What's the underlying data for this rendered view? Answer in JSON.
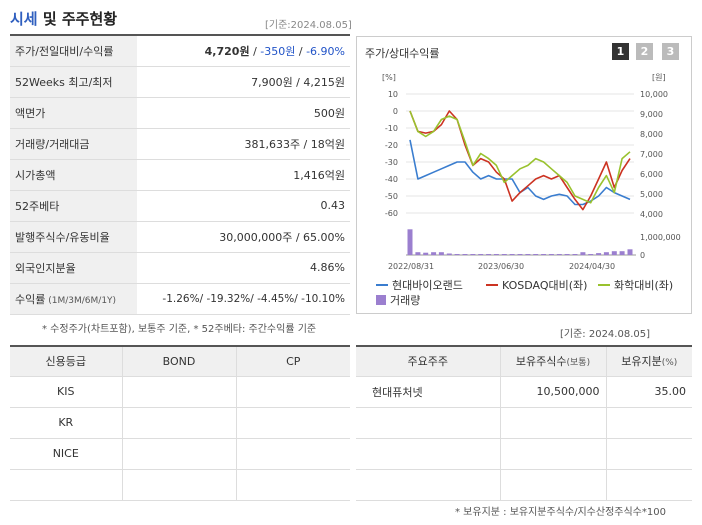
{
  "header": {
    "title_accent": "시세",
    "title_rest": " 및 주주현황",
    "asof": "[기준:2024.08.05]"
  },
  "stats": [
    {
      "label": "주가/전일대비/수익률",
      "v1": "4,720원",
      "sep1": " / ",
      "v2": "-350원",
      "sep2": " / ",
      "v3": "-6.90%"
    },
    {
      "label": "52Weeks 최고/최저",
      "value": "7,900원 / 4,215원"
    },
    {
      "label": "액면가",
      "value": "500원"
    },
    {
      "label": "거래량/거래대금",
      "value": "381,633주 / 18억원"
    },
    {
      "label": "시가총액",
      "value": "1,416억원"
    },
    {
      "label": "52주베타",
      "value": "0.43"
    },
    {
      "label": "발행주식수/유동비율",
      "value": "30,000,000주 / 65.00%"
    },
    {
      "label": "외국인지분율",
      "value": "4.86%"
    },
    {
      "label_main": "수익률",
      "label_sub": " (1M/3M/6M/1Y)",
      "value": "-1.26%/ -19.32%/ -4.45%/ -10.10%"
    }
  ],
  "note_stats": "* 수정주가(차트포함), 보통주 기준, * 52주베타: 주간수익률 기준",
  "chart": {
    "title": "주가/상대수익률",
    "pages": [
      "1",
      "2",
      "3"
    ],
    "left_unit": "[%]",
    "right_unit": "[원]",
    "left_ticks": [
      "10",
      "0",
      "-10",
      "-20",
      "-30",
      "-40",
      "-50",
      "-60"
    ],
    "right_ticks": [
      "10,000",
      "9,000",
      "8,000",
      "7,000",
      "6,000",
      "5,000",
      "4,000"
    ],
    "vol_tick": "1,000,000",
    "vol_zero": "0",
    "x_labels": [
      "2022/08/31",
      "2023/06/30",
      "2024/04/30"
    ],
    "legend": [
      "현대바이오랜드",
      "KOSDAQ대비(좌)",
      "화학대비(좌)",
      "거래량"
    ]
  },
  "chart_data": {
    "type": "line",
    "x_labels": [
      "2022/08/31",
      "2023/06/30",
      "2024/04/30"
    ],
    "left_axis": {
      "label": "[%]",
      "range": [
        -60,
        10
      ]
    },
    "right_axis": {
      "label": "[원]",
      "range": [
        4000,
        10000
      ]
    },
    "series": [
      {
        "name": "현대바이오랜드",
        "color": "#3a7dcf",
        "axis": "left",
        "values": [
          -17,
          -40,
          -38,
          -36,
          -34,
          -32,
          -30,
          -30,
          -36,
          -40,
          -38,
          -40,
          -40,
          -40,
          -48,
          -45,
          -50,
          -52,
          -50,
          -49,
          -50,
          -55,
          -55,
          -53,
          -50,
          -45,
          -48,
          -50,
          -52
        ]
      },
      {
        "name": "KOSDAQ대비(좌)",
        "color": "#cc3322",
        "axis": "left",
        "values": [
          0,
          -12,
          -13,
          -12,
          -8,
          0,
          -5,
          -20,
          -32,
          -28,
          -30,
          -36,
          -40,
          -53,
          -48,
          -44,
          -40,
          -38,
          -40,
          -38,
          -45,
          -52,
          -58,
          -50,
          -40,
          -30,
          -45,
          -35,
          -28
        ]
      },
      {
        "name": "화학대비(좌)",
        "color": "#99c22e",
        "axis": "left",
        "values": [
          0,
          -12,
          -15,
          -12,
          -5,
          -3,
          -5,
          -18,
          -32,
          -25,
          -28,
          -32,
          -42,
          -38,
          -34,
          -32,
          -28,
          -30,
          -34,
          -38,
          -42,
          -50,
          -52,
          -54,
          -45,
          -38,
          -48,
          -28,
          -24
        ]
      }
    ],
    "volume": {
      "name": "거래량",
      "color": "#9b7fcf",
      "values": [
        1350000,
        150000,
        120000,
        150000,
        150000,
        80000,
        50000,
        50000,
        50000,
        50000,
        30000,
        30000,
        30000,
        30000,
        30000,
        30000,
        30000,
        30000,
        30000,
        30000,
        30000,
        50000,
        150000,
        50000,
        100000,
        150000,
        200000,
        200000,
        300000
      ],
      "range": [
        0,
        1000000
      ]
    }
  },
  "note_chart": "[기준: 2024.08.05]",
  "credit": {
    "headers": [
      "신용등급",
      "BOND",
      "CP"
    ],
    "rows": [
      [
        "KIS",
        "",
        ""
      ],
      [
        "KR",
        "",
        ""
      ],
      [
        "NICE",
        "",
        ""
      ],
      [
        "",
        "",
        ""
      ]
    ]
  },
  "holders": {
    "headers": [
      "주요주주",
      "보유주식수",
      "(보통)",
      "보유지분",
      "(%)"
    ],
    "rows": [
      [
        "현대퓨처넷",
        "10,500,000",
        "35.00"
      ],
      [
        "",
        "",
        ""
      ],
      [
        "",
        "",
        ""
      ],
      [
        "",
        "",
        ""
      ]
    ]
  },
  "note_holders": "* 보유지분 : 보유지분주식수/지수산정주식수*100"
}
